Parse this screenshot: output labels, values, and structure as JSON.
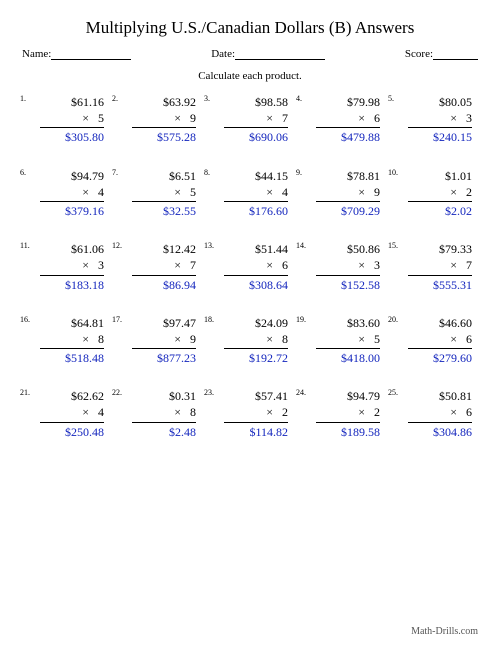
{
  "title": "Multiplying U.S./Canadian Dollars (B) Answers",
  "meta": {
    "name_label": "Name:",
    "date_label": "Date:",
    "score_label": "Score:"
  },
  "instructions": "Calculate each product.",
  "footer": "Math-Drills.com",
  "style": {
    "answer_color": "#1325bd",
    "text_color": "#000000",
    "background": "#ffffff",
    "font_family": "Times New Roman",
    "title_fontsize": 17,
    "body_fontsize": 12,
    "cols": 5,
    "rows": 5
  },
  "problems": [
    {
      "n": "1.",
      "a": "$61.16",
      "b": "5",
      "ans": "$305.80"
    },
    {
      "n": "2.",
      "a": "$63.92",
      "b": "9",
      "ans": "$575.28"
    },
    {
      "n": "3.",
      "a": "$98.58",
      "b": "7",
      "ans": "$690.06"
    },
    {
      "n": "4.",
      "a": "$79.98",
      "b": "6",
      "ans": "$479.88"
    },
    {
      "n": "5.",
      "a": "$80.05",
      "b": "3",
      "ans": "$240.15"
    },
    {
      "n": "6.",
      "a": "$94.79",
      "b": "4",
      "ans": "$379.16"
    },
    {
      "n": "7.",
      "a": "$6.51",
      "b": "5",
      "ans": "$32.55"
    },
    {
      "n": "8.",
      "a": "$44.15",
      "b": "4",
      "ans": "$176.60"
    },
    {
      "n": "9.",
      "a": "$78.81",
      "b": "9",
      "ans": "$709.29"
    },
    {
      "n": "10.",
      "a": "$1.01",
      "b": "2",
      "ans": "$2.02"
    },
    {
      "n": "11.",
      "a": "$61.06",
      "b": "3",
      "ans": "$183.18"
    },
    {
      "n": "12.",
      "a": "$12.42",
      "b": "7",
      "ans": "$86.94"
    },
    {
      "n": "13.",
      "a": "$51.44",
      "b": "6",
      "ans": "$308.64"
    },
    {
      "n": "14.",
      "a": "$50.86",
      "b": "3",
      "ans": "$152.58"
    },
    {
      "n": "15.",
      "a": "$79.33",
      "b": "7",
      "ans": "$555.31"
    },
    {
      "n": "16.",
      "a": "$64.81",
      "b": "8",
      "ans": "$518.48"
    },
    {
      "n": "17.",
      "a": "$97.47",
      "b": "9",
      "ans": "$877.23"
    },
    {
      "n": "18.",
      "a": "$24.09",
      "b": "8",
      "ans": "$192.72"
    },
    {
      "n": "19.",
      "a": "$83.60",
      "b": "5",
      "ans": "$418.00"
    },
    {
      "n": "20.",
      "a": "$46.60",
      "b": "6",
      "ans": "$279.60"
    },
    {
      "n": "21.",
      "a": "$62.62",
      "b": "4",
      "ans": "$250.48"
    },
    {
      "n": "22.",
      "a": "$0.31",
      "b": "8",
      "ans": "$2.48"
    },
    {
      "n": "23.",
      "a": "$57.41",
      "b": "2",
      "ans": "$114.82"
    },
    {
      "n": "24.",
      "a": "$94.79",
      "b": "2",
      "ans": "$189.58"
    },
    {
      "n": "25.",
      "a": "$50.81",
      "b": "6",
      "ans": "$304.86"
    }
  ]
}
